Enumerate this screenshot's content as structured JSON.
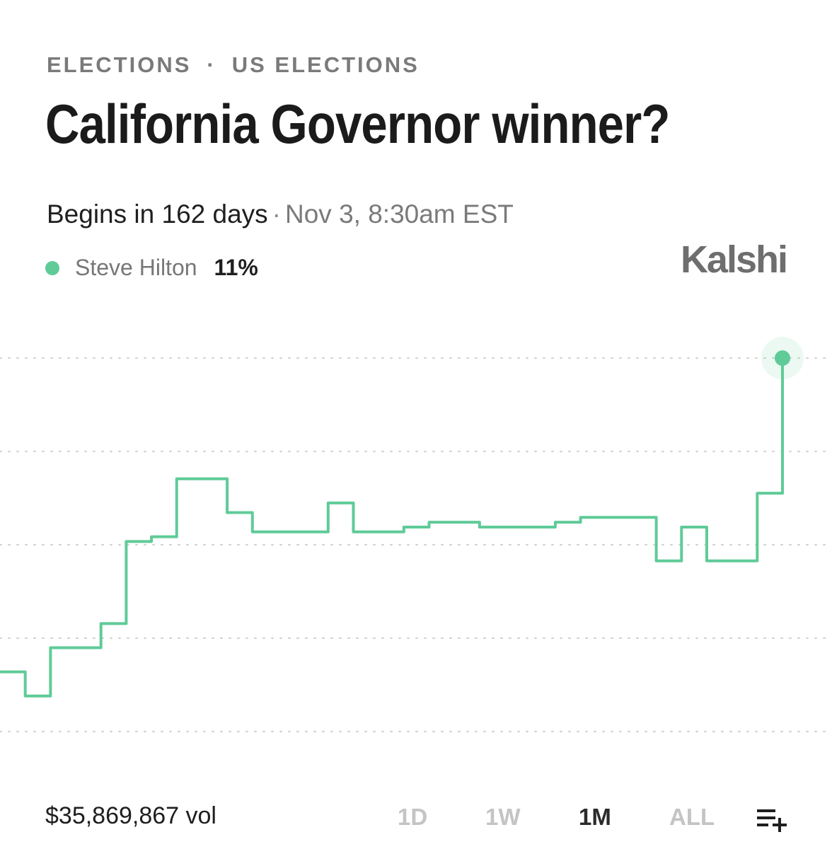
{
  "breadcrumb": {
    "category": "ELECTIONS",
    "separator": "·",
    "subcategory": "US ELECTIONS"
  },
  "title": "California Governor winner?",
  "schedule": {
    "begins": "Begins in 162 days",
    "separator": "·",
    "date": "Nov 3, 8:30am EST"
  },
  "legend": {
    "name": "Steve Hilton",
    "value": "11%",
    "color": "#5fcb98"
  },
  "brand": "Kalshi",
  "footer": {
    "volume": "$35,869,867 vol",
    "ranges": [
      "1D",
      "1W",
      "1M",
      "ALL"
    ],
    "active_range": "1M",
    "list_icon": "playlist-add-icon"
  },
  "chart_data": {
    "type": "line",
    "step": true,
    "grid": true,
    "grid_style": "dotted",
    "axis_labels_shown": false,
    "series": [
      {
        "name": "Steve Hilton",
        "color": "#5fcb98",
        "values": [
          4.5,
          4.0,
          5.0,
          5.0,
          5.5,
          7.2,
          7.3,
          8.5,
          8.5,
          7.8,
          7.4,
          7.4,
          7.4,
          8.0,
          7.4,
          7.4,
          7.5,
          7.6,
          7.6,
          7.5,
          7.5,
          7.5,
          7.6,
          7.7,
          7.7,
          7.7,
          6.8,
          7.5,
          6.8,
          6.8,
          8.2,
          11.0
        ]
      }
    ],
    "current_value": 11,
    "ylim": [
      3,
      11.5
    ]
  }
}
